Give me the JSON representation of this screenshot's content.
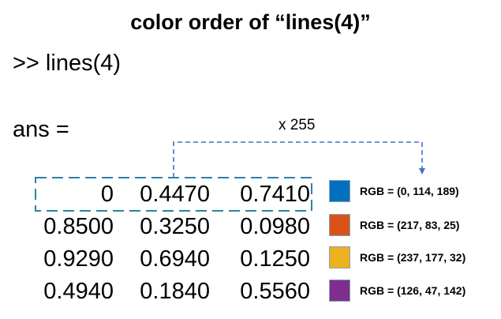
{
  "title": "color order of “lines(4)”",
  "command": ">> lines(4)",
  "ans_label": "ans =",
  "multiplier_label": "x 255",
  "matrix": [
    [
      "0",
      "0.4470",
      "0.7410"
    ],
    [
      "0.8500",
      "0.3250",
      "0.0980"
    ],
    [
      "0.9290",
      "0.6940",
      "0.1250"
    ],
    [
      "0.4940",
      "0.1840",
      "0.5560"
    ]
  ],
  "colors": [
    {
      "label": "RGB = (0, 114, 189)",
      "hex": "#0072bd"
    },
    {
      "label": "RGB = (217, 83, 25)",
      "hex": "#d95319"
    },
    {
      "label": "RGB = (237, 177, 32)",
      "hex": "#edb120"
    },
    {
      "label": "RGB = (126, 47, 142)",
      "hex": "#7e2f8e"
    }
  ],
  "accent_color": "#4472c4",
  "highlight_color": "#2e7fa8"
}
